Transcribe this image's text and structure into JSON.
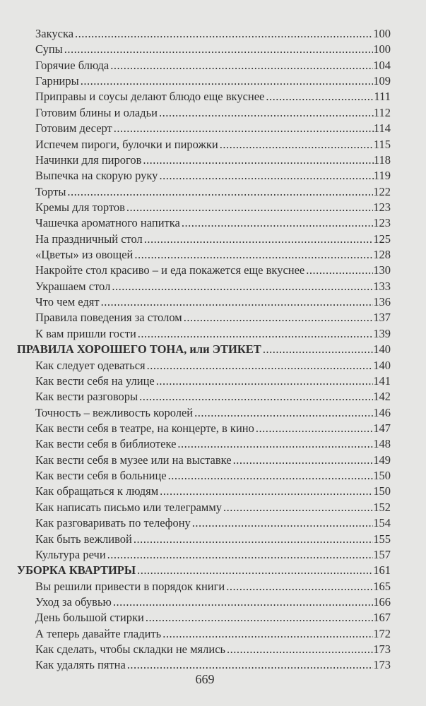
{
  "toc": [
    {
      "title": "Закуска",
      "page": "100",
      "level": "sub"
    },
    {
      "title": "Супы",
      "page": "100",
      "level": "sub"
    },
    {
      "title": "Горячие блюда",
      "page": "104",
      "level": "sub"
    },
    {
      "title": "Гарниры",
      "page": "109",
      "level": "sub"
    },
    {
      "title": "Приправы и соусы делают блюдо еще вкуснее",
      "page": "111",
      "level": "sub"
    },
    {
      "title": "Готовим блины и оладьи",
      "page": "112",
      "level": "sub"
    },
    {
      "title": "Готовим десерт",
      "page": "114",
      "level": "sub"
    },
    {
      "title": "Испечем пироги, булочки и пирожки",
      "page": "115",
      "level": "sub"
    },
    {
      "title": "Начинки для пирогов",
      "page": "118",
      "level": "sub"
    },
    {
      "title": "Выпечка на скорую руку",
      "page": "119",
      "level": "sub"
    },
    {
      "title": "Торты",
      "page": "122",
      "level": "sub"
    },
    {
      "title": "Кремы для тортов",
      "page": "123",
      "level": "sub"
    },
    {
      "title": "Чашечка ароматного напитка",
      "page": "123",
      "level": "sub"
    },
    {
      "title": "На праздничный стол",
      "page": "125",
      "level": "sub"
    },
    {
      "title": "«Цветы» из овощей",
      "page": "128",
      "level": "sub"
    },
    {
      "title": "Накройте стол красиво – и еда покажется еще вкуснее",
      "page": "130",
      "level": "sub"
    },
    {
      "title": "Украшаем стол",
      "page": "133",
      "level": "sub"
    },
    {
      "title": "Что чем едят",
      "page": "136",
      "level": "sub"
    },
    {
      "title": "Правила поведения за столом",
      "page": "137",
      "level": "sub"
    },
    {
      "title": "К вам пришли гости",
      "page": "139",
      "level": "sub"
    },
    {
      "title": "ПРАВИЛА ХОРОШЕГО ТОНА, или ЭТИКЕТ",
      "page": "140",
      "level": "head"
    },
    {
      "title": "Как следует одеваться",
      "page": "140",
      "level": "sub"
    },
    {
      "title": "Как вести себя на улице",
      "page": "141",
      "level": "sub"
    },
    {
      "title": "Как вести разговоры",
      "page": "142",
      "level": "sub"
    },
    {
      "title": "Точность – вежливость королей",
      "page": "146",
      "level": "sub"
    },
    {
      "title": "Как вести себя в театре, на концерте, в кино",
      "page": "147",
      "level": "sub"
    },
    {
      "title": "Как вести себя в библиотеке",
      "page": "148",
      "level": "sub"
    },
    {
      "title": "Как вести себя в музее или на выставке",
      "page": "149",
      "level": "sub"
    },
    {
      "title": "Как вести себя в больнице",
      "page": "150",
      "level": "sub"
    },
    {
      "title": "Как обращаться к людям",
      "page": "150",
      "level": "sub"
    },
    {
      "title": "Как написать письмо или телеграмму",
      "page": "152",
      "level": "sub"
    },
    {
      "title": "Как разговаривать по телефону",
      "page": "154",
      "level": "sub"
    },
    {
      "title": "Как быть вежливой",
      "page": "155",
      "level": "sub"
    },
    {
      "title": "Культура речи",
      "page": "157",
      "level": "sub"
    },
    {
      "title": "УБОРКА КВАРТИРЫ",
      "page": "161",
      "level": "head"
    },
    {
      "title": "Вы решили привести в порядок книги",
      "page": "165",
      "level": "sub"
    },
    {
      "title": "Уход за обувью",
      "page": "166",
      "level": "sub"
    },
    {
      "title": "День большой стирки",
      "page": "167",
      "level": "sub"
    },
    {
      "title": "А теперь давайте гладить",
      "page": "172",
      "level": "sub"
    },
    {
      "title": "Как сделать, чтобы складки не мялись",
      "page": "173",
      "level": "sub"
    },
    {
      "title": "Как удалять пятна",
      "page": "173",
      "level": "sub"
    }
  ],
  "folio": "669"
}
